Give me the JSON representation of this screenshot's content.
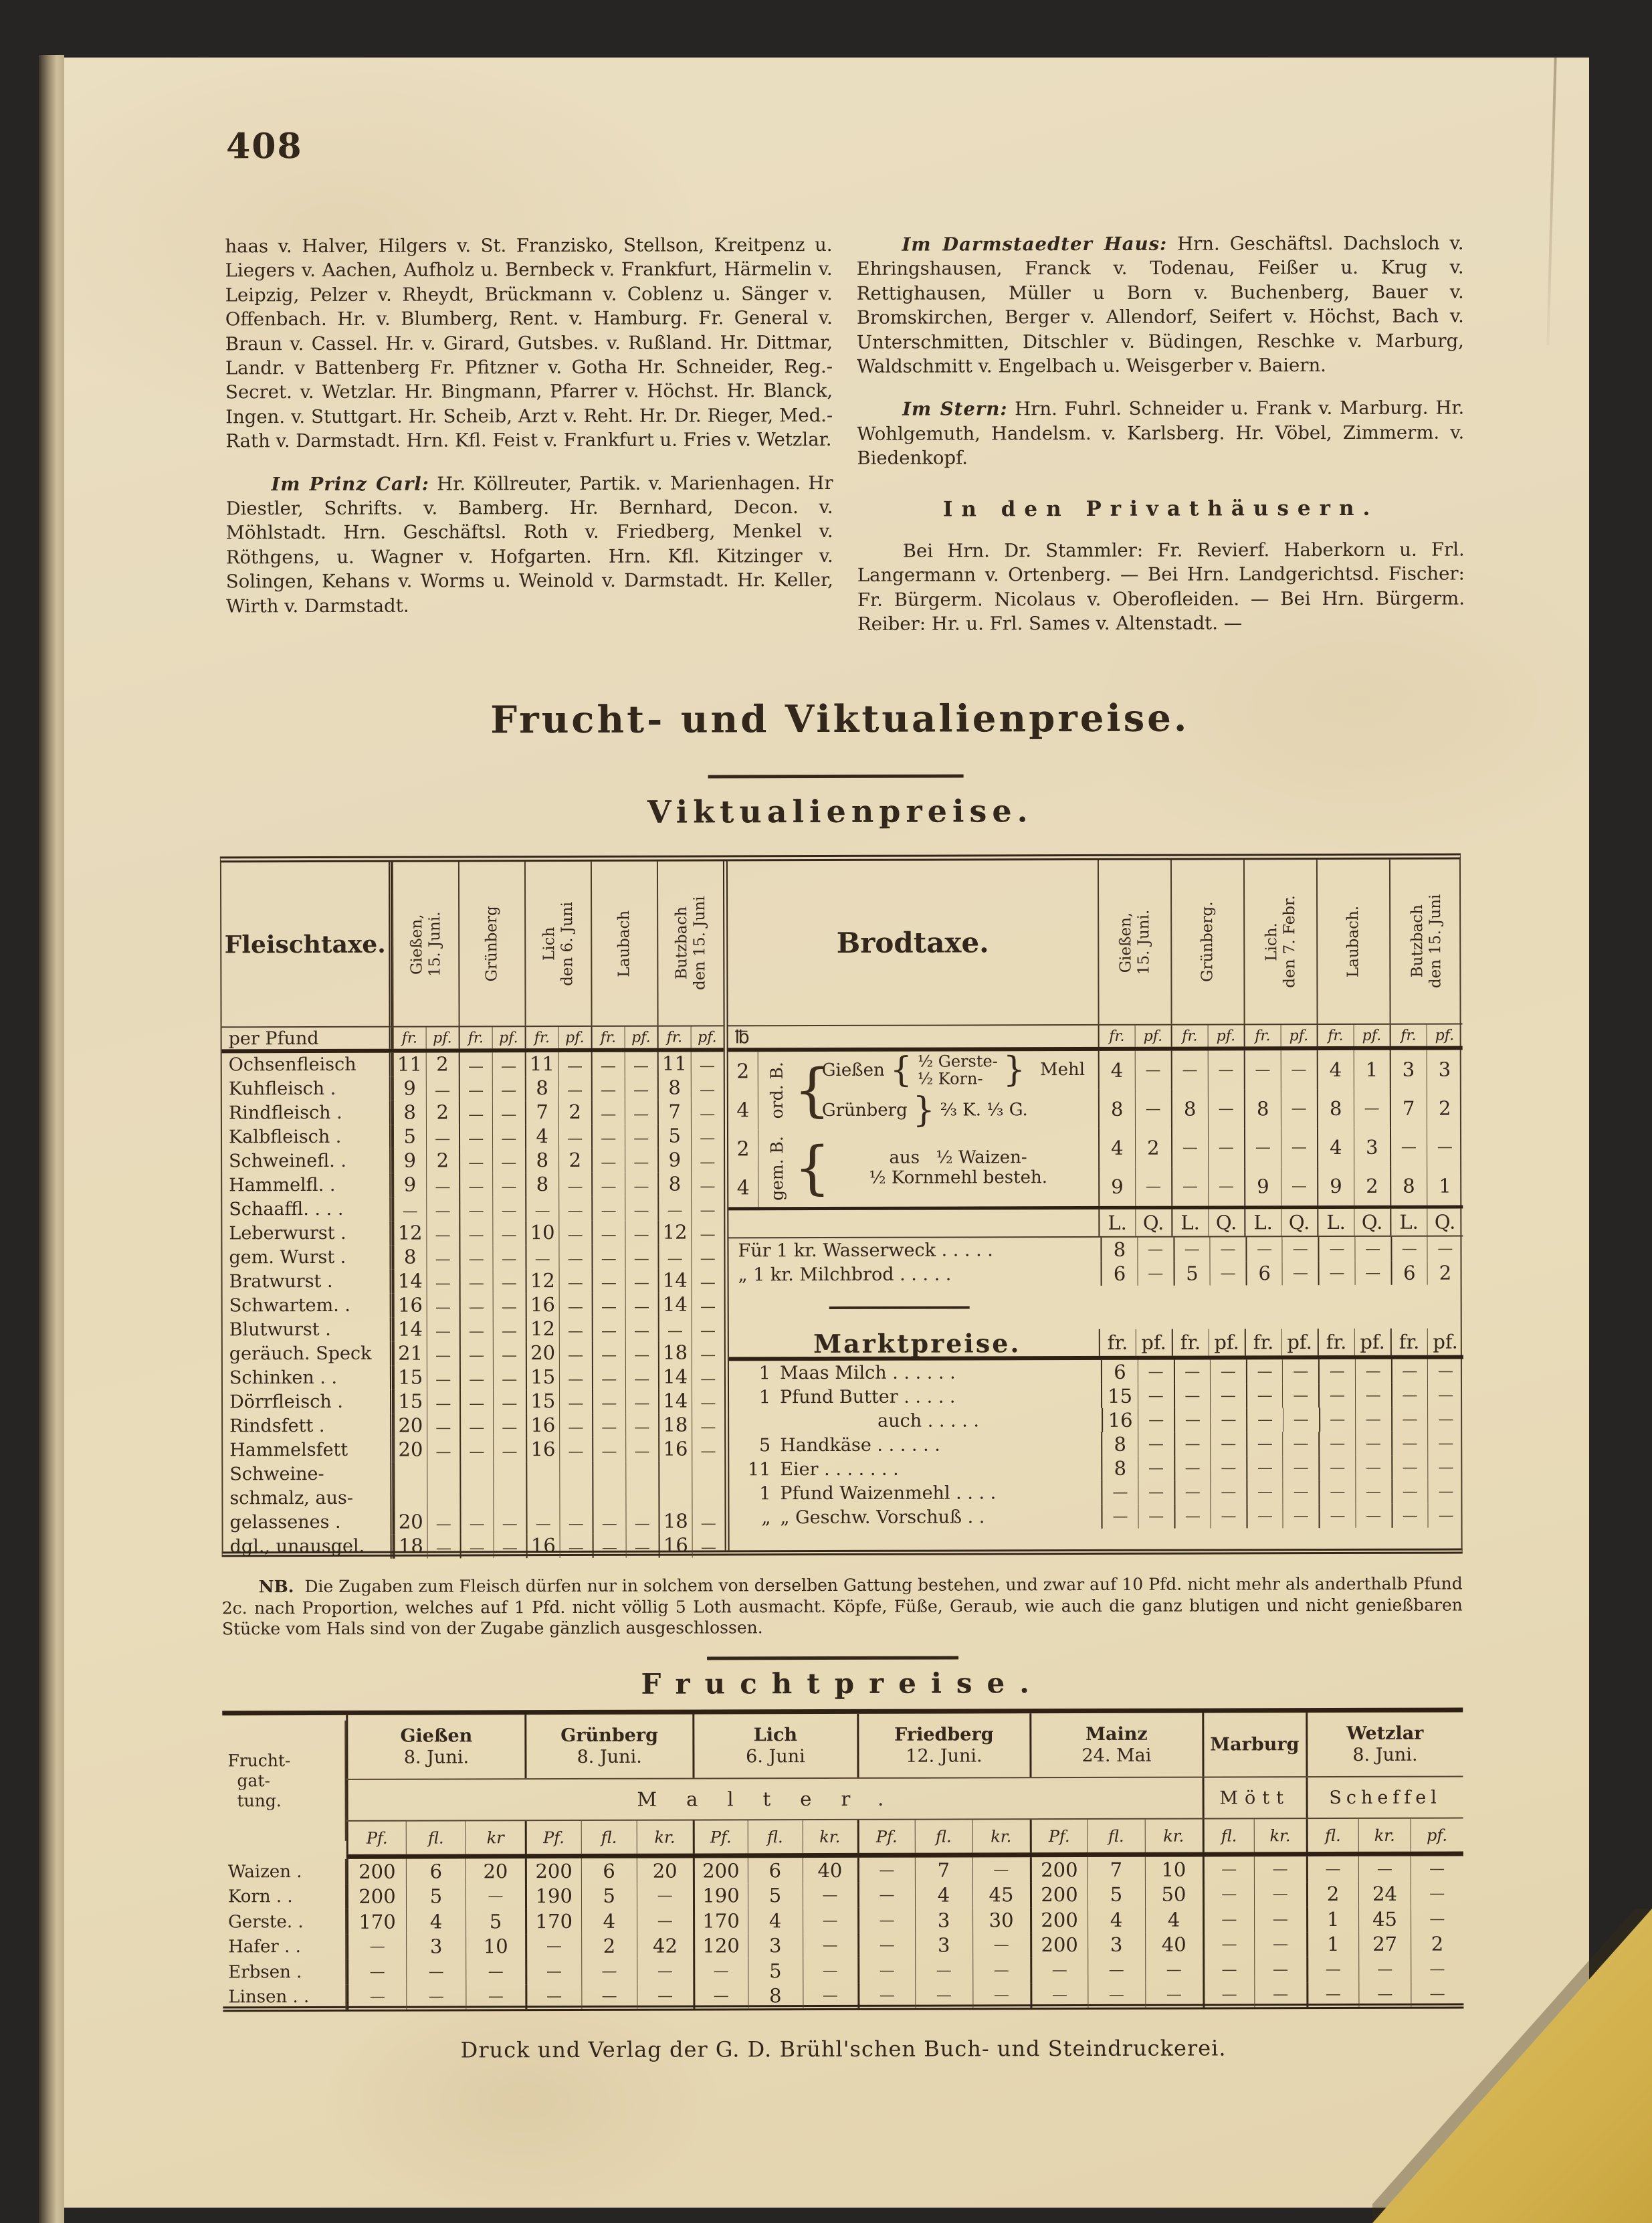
{
  "page": {
    "number": "408"
  },
  "guests": {
    "left": {
      "para1": "haas v. Halver, Hilgers v. St. Franzisko, Stellson, Kreitpenz u. Liegers v. Aachen, Aufholz u. Bernbeck v. Frankfurt, Härmelin v. Leipzig, Pelzer v. Rheydt, Brückmann v. Coblenz u. Sänger v. Offenbach. Hr. v. Blumberg, Rent. v. Hamburg. Fr. General v. Braun v. Cassel. Hr. v. Girard, Gutsbes. v. Rußland. Hr. Dittmar, Landr. v Battenberg Fr. Pfitzner v. Gotha Hr. Schneider, Reg.-Secret. v. Wetzlar. Hr. Bingmann, Pfarrer v. Höchst. Hr. Blanck, Ingen. v. Stuttgart. Hr. Scheib, Arzt v. Reht. Hr. Dr. Rieger, Med.-Rath v. Darmstadt. Hrn. Kfl. Feist v. Frankfurt u. Fries v. Wetzlar.",
      "para2_lead": "Im Prinz Carl:",
      "para2": "Hr. Köllreuter, Partik. v. Marienhagen. Hr Diestler, Schrifts. v. Bamberg. Hr. Bernhard, Decon. v. Möhlstadt. Hrn. Geschäftsl. Roth v. Friedberg, Menkel v. Röthgens, u. Wagner v. Hofgarten. Hrn. Kfl. Kitzinger v. Solingen, Kehans v. Worms u. Weinold v. Darmstadt. Hr. Keller, Wirth v. Darmstadt."
    },
    "right": {
      "para1_lead": "Im Darmstaedter Haus:",
      "para1": "Hrn. Geschäftsl. Dachsloch v. Ehringshausen, Franck v. Todenau, Feißer u. Krug v. Rettighausen, Müller u Born v. Buchenberg, Bauer v. Bromskirchen, Berger v. Allendorf, Seifert v. Höchst, Bach v. Unterschmitten, Ditschler v. Büdingen, Reschke v. Marburg, Waldschmitt v. Engelbach u. Weisgerber v. Baiern.",
      "para2_lead": "Im Stern:",
      "para2": "Hrn. Fuhrl. Schneider u. Frank v. Marburg. Hr. Wohlgemuth, Handelsm. v. Karlsberg. Hr. Vöbel, Zimmerm. v. Biedenkopf.",
      "heading": "In den Privathäusern.",
      "para3": "Bei Hrn. Dr. Stammler: Fr. Revierf. Haberkorn u. Frl. Langermann v. Ortenberg. — Bei Hrn. Landgerichtsd. Fischer: Fr. Bürgerm. Nicolaus v. Oberofleiden. — Bei Hrn. Bürgerm. Reiber: Hr. u. Frl. Sames v. Altenstadt. —"
    }
  },
  "titles": {
    "main": "Frucht- und Viktualienpreise.",
    "sub": "Viktualienpreise."
  },
  "vikt": {
    "fleisch": {
      "title": "Fleischtaxe.",
      "per_unit": "per Pfund",
      "cities": [
        "Gießen,\n15. Juni.",
        "Grünberg",
        "Lich\nden 6. Juni",
        "Laubach",
        "Butzbach\nden 15. Juni"
      ],
      "units": [
        "fr.",
        "pf.",
        "fr.",
        "pf.",
        "fr.",
        "pf.",
        "fr.",
        "pf.",
        "fr.",
        "pf."
      ],
      "rows": [
        {
          "label": "Ochsenfleisch",
          "v": [
            "11",
            "2",
            "—",
            "—",
            "11",
            "—",
            "—",
            "—",
            "11",
            "—"
          ]
        },
        {
          "label": "Kuhfleisch .",
          "v": [
            "9",
            "—",
            "—",
            "—",
            "8",
            "—",
            "—",
            "—",
            "8",
            "—"
          ]
        },
        {
          "label": "Rindfleisch .",
          "v": [
            "8",
            "2",
            "—",
            "—",
            "7",
            "2",
            "—",
            "—",
            "7",
            "—"
          ]
        },
        {
          "label": "Kalbfleisch .",
          "v": [
            "5",
            "—",
            "—",
            "—",
            "4",
            "—",
            "—",
            "—",
            "5",
            "—"
          ]
        },
        {
          "label": "Schweinefl. .",
          "v": [
            "9",
            "2",
            "—",
            "—",
            "8",
            "2",
            "—",
            "—",
            "9",
            "—"
          ]
        },
        {
          "label": "Hammelfl. .",
          "v": [
            "9",
            "—",
            "—",
            "—",
            "8",
            "—",
            "—",
            "—",
            "8",
            "—"
          ]
        },
        {
          "label": "Schaaffl. . . .",
          "v": [
            "—",
            "—",
            "—",
            "—",
            "—",
            "—",
            "—",
            "—",
            "—",
            "—"
          ]
        },
        {
          "label": "Leberwurst .",
          "v": [
            "12",
            "—",
            "—",
            "—",
            "10",
            "—",
            "—",
            "—",
            "12",
            "—"
          ]
        },
        {
          "label": "gem. Wurst .",
          "v": [
            "8",
            "—",
            "—",
            "—",
            "—",
            "—",
            "—",
            "—",
            "—",
            "—"
          ]
        },
        {
          "label": "Bratwurst .",
          "v": [
            "14",
            "—",
            "—",
            "—",
            "12",
            "—",
            "—",
            "—",
            "14",
            "—"
          ]
        },
        {
          "label": "Schwartem. .",
          "v": [
            "16",
            "—",
            "—",
            "—",
            "16",
            "—",
            "—",
            "—",
            "14",
            "—"
          ]
        },
        {
          "label": "Blutwurst .",
          "v": [
            "14",
            "—",
            "—",
            "—",
            "12",
            "—",
            "—",
            "—",
            "—",
            "—"
          ]
        },
        {
          "label": "geräuch. Speck",
          "v": [
            "21",
            "—",
            "—",
            "—",
            "20",
            "—",
            "—",
            "—",
            "18",
            "—"
          ]
        },
        {
          "label": "Schinken . .",
          "v": [
            "15",
            "—",
            "—",
            "—",
            "15",
            "—",
            "—",
            "—",
            "14",
            "—"
          ]
        },
        {
          "label": "Dörrfleisch .",
          "v": [
            "15",
            "—",
            "—",
            "—",
            "15",
            "—",
            "—",
            "—",
            "14",
            "—"
          ]
        },
        {
          "label": "Rindsfett .",
          "v": [
            "20",
            "—",
            "—",
            "—",
            "16",
            "—",
            "—",
            "—",
            "18",
            "—"
          ]
        },
        {
          "label": "Hammelsfett",
          "v": [
            "20",
            "—",
            "—",
            "—",
            "16",
            "—",
            "—",
            "—",
            "16",
            "—"
          ]
        },
        {
          "lines": [
            "Schweine-",
            "schmalz, aus-",
            "gelassenes ."
          ],
          "v": [
            "20",
            "—",
            "—",
            "—",
            "—",
            "—",
            "—",
            "—",
            "18",
            "—"
          ]
        },
        {
          "label": "dgl., unausgel.",
          "v": [
            "18",
            "—",
            "—",
            "—",
            "16",
            "—",
            "—",
            "—",
            "16",
            "—"
          ]
        }
      ]
    },
    "brod": {
      "title": "Brodtaxe.",
      "pound": "℔",
      "cities": [
        "Gießen,\n15. Juni.",
        "Grünberg.",
        "Lich.\nden 7. Febr.",
        "Laubach.",
        "Butzbach\nden 15. Juni"
      ],
      "units": [
        "fr.",
        "pf.",
        "fr.",
        "pf.",
        "fr.",
        "pf.",
        "fr.",
        "pf.",
        "fr.",
        "pf."
      ],
      "groups": [
        {
          "num1": "2",
          "num2": "4",
          "side": "ord. B.",
          "city1": "Gießen",
          "city2": "Grünberg",
          "opt1a": "½ Gerste-",
          "opt1b": "½ Korn-",
          "right": "Mehl",
          "opt2": "⅔ K. ⅓ G.",
          "r1": [
            "4",
            "—",
            "—",
            "—",
            "—",
            "—",
            "4",
            "1",
            "3",
            "3"
          ],
          "r2": [
            "8",
            "—",
            "8",
            "—",
            "8",
            "—",
            "8",
            "—",
            "7",
            "2"
          ]
        },
        {
          "num1": "2",
          "num2": "4",
          "side": "gem. B.",
          "pre": "aus",
          "linea": "½ Waizen-",
          "lineb": "½ Kornmehl besteh.",
          "r1": [
            "4",
            "2",
            "—",
            "—",
            "—",
            "—",
            "4",
            "3",
            "—",
            "—"
          ],
          "r2": [
            "9",
            "—",
            "—",
            "—",
            "9",
            "—",
            "9",
            "2",
            "8",
            "1"
          ]
        }
      ],
      "lq": [
        "L.",
        "Q.",
        "L.",
        "Q.",
        "L.",
        "Q.",
        "L.",
        "Q.",
        "L.",
        "Q."
      ],
      "bread_rows": [
        {
          "label": "Für 1 kr. Wasserweck .  .  .  .  .",
          "v": [
            "8",
            "—",
            "—",
            "—",
            "—",
            "—",
            "—",
            "—",
            "—",
            "—"
          ]
        },
        {
          "label": "„   1 kr. Milchbrod  .  .  .  .  .",
          "v": [
            "6",
            "—",
            "5",
            "—",
            "6",
            "—",
            "—",
            "—",
            "6",
            "2"
          ]
        }
      ],
      "markt": {
        "title": "Marktpreise.",
        "units": [
          "fr.",
          "pf.",
          "fr.",
          "pf.",
          "fr.",
          "pf.",
          "fr.",
          "pf.",
          "fr.",
          "pf."
        ],
        "rows": [
          {
            "qty": "1",
            "label": "Maas Milch .   .   .   .   .   .",
            "v": [
              "6",
              "—",
              "—",
              "—",
              "—",
              "—",
              "—",
              "—",
              "—",
              "—"
            ]
          },
          {
            "qty": "1",
            "label": "Pfund Butter    .   .   .   .   .",
            "v": [
              "15",
              "—",
              "—",
              "—",
              "—",
              "—",
              "—",
              "—",
              "—",
              "—"
            ]
          },
          {
            "qty": "",
            "label": "auch   .   .   .   .   .",
            "indent": true,
            "v": [
              "16",
              "—",
              "—",
              "—",
              "—",
              "—",
              "—",
              "—",
              "—",
              "—"
            ]
          },
          {
            "qty": "5",
            "label": "Handkäse  .   .   .   .   .   .",
            "v": [
              "8",
              "—",
              "—",
              "—",
              "—",
              "—",
              "—",
              "—",
              "—",
              "—"
            ]
          },
          {
            "qty": "11",
            "label": "Eier   .   .   .   .   .   .   .",
            "v": [
              "8",
              "—",
              "—",
              "—",
              "—",
              "—",
              "—",
              "—",
              "—",
              "—"
            ]
          },
          {
            "qty": "1",
            "label": "Pfund Waizenmehl .   .   .   .",
            "v": [
              "—",
              "—",
              "—",
              "—",
              "—",
              "—",
              "—",
              "—",
              "—",
              "—"
            ]
          },
          {
            "qty": "„",
            "label": "„   Geschw. Vorschuß  .   .",
            "v": [
              "—",
              "—",
              "—",
              "—",
              "—",
              "—",
              "—",
              "—",
              "—",
              "—"
            ]
          }
        ]
      }
    }
  },
  "nb": {
    "lead": "NB.",
    "text": "Die Zugaben zum Fleisch dürfen nur in solchem von derselben Gattung bestehen, und zwar auf 10 Pfd. nicht mehr als anderthalb Pfund 2c. nach Proportion, welches auf 1 Pfd. nicht völlig 5 Loth ausmacht. Köpfe, Füße, Geraub, wie auch die ganz blutigen und nicht genießbaren Stücke vom Hals sind von der Zugabe gänzlich ausgeschlossen."
  },
  "frucht": {
    "title": "Fruchtpreise.",
    "label_lines": [
      "Frucht-",
      "gat-",
      "tung."
    ],
    "cities": [
      {
        "name": "Gießen",
        "date": "8. Juni."
      },
      {
        "name": "Grünberg",
        "date": "8. Juni."
      },
      {
        "name": "Lich",
        "date": "6. Juni"
      },
      {
        "name": "Friedberg",
        "date": "12. Juni."
      },
      {
        "name": "Mainz",
        "date": "24.  Mai"
      },
      {
        "name": "Marburg",
        "date": ""
      },
      {
        "name": "Wetzlar",
        "date": "8. Juni."
      }
    ],
    "malter": "Malter.",
    "moett": "Mött",
    "scheffel": "Scheffel",
    "units": [
      "Pf.",
      "fl.",
      "kr",
      "Pf.",
      "fl.",
      "kr.",
      "Pf.",
      "fl.",
      "kr.",
      "Pf.",
      "fl.",
      "kr.",
      "Pf.",
      "fl.",
      "kr.",
      "fl.",
      "kr.",
      "fl.",
      "kr.",
      "pf."
    ],
    "rows": [
      {
        "label": "Waizen .",
        "v": [
          "200",
          "6",
          "20",
          "200",
          "6",
          "20",
          "200",
          "6",
          "40",
          "—",
          "7",
          "—",
          "200",
          "7",
          "10",
          "—",
          "—",
          "—",
          "—",
          "—"
        ]
      },
      {
        "label": "Korn .   .",
        "v": [
          "200",
          "5",
          "—",
          "190",
          "5",
          "—",
          "190",
          "5",
          "—",
          "—",
          "4",
          "45",
          "200",
          "5",
          "50",
          "—",
          "—",
          "2",
          "24",
          "—"
        ]
      },
      {
        "label": "Gerste.  .",
        "v": [
          "170",
          "4",
          "5",
          "170",
          "4",
          "—",
          "170",
          "4",
          "—",
          "—",
          "3",
          "30",
          "200",
          "4",
          "4",
          "—",
          "—",
          "1",
          "45",
          "—"
        ]
      },
      {
        "label": "Hafer .  .",
        "v": [
          "—",
          "3",
          "10",
          "—",
          "2",
          "42",
          "120",
          "3",
          "—",
          "—",
          "3",
          "—",
          "200",
          "3",
          "40",
          "—",
          "—",
          "1",
          "27",
          "2"
        ]
      },
      {
        "label": "Erbsen  .",
        "v": [
          "—",
          "—",
          "—",
          "—",
          "—",
          "—",
          "—",
          "5",
          "—",
          "—",
          "—",
          "—",
          "—",
          "—",
          "—",
          "—",
          "—",
          "—",
          "—",
          "—"
        ]
      },
      {
        "label": "Linsen . .",
        "v": [
          "—",
          "—",
          "—",
          "—",
          "—",
          "—",
          "—",
          "8",
          "—",
          "—",
          "—",
          "—",
          "—",
          "—",
          "—",
          "—",
          "—",
          "—",
          "—",
          "—"
        ]
      }
    ]
  },
  "imprint": "Druck und Verlag der G. D. Brühl'schen Buch-  und Steindruckerei."
}
